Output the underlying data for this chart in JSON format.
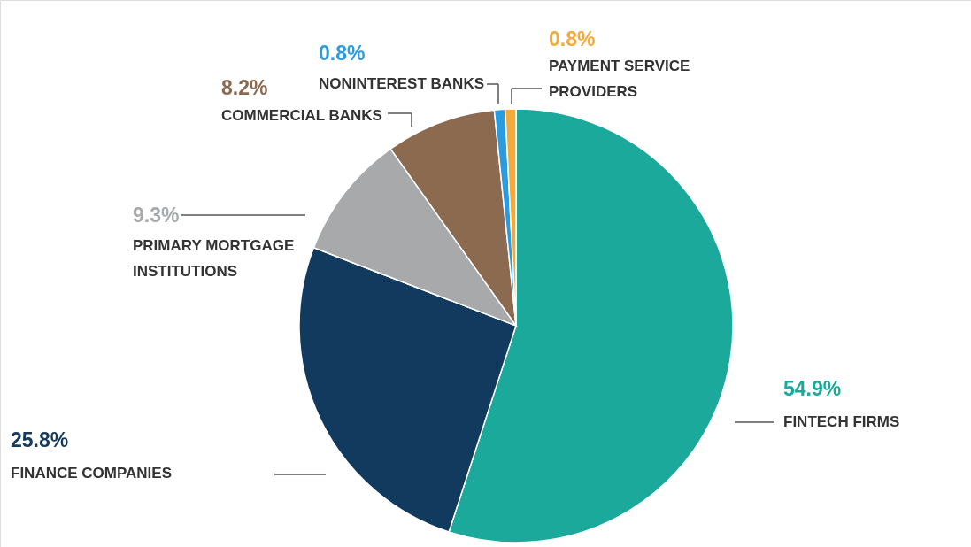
{
  "chart_data": {
    "type": "pie",
    "categories": [
      "FINTECH FIRMS",
      "FINANCE COMPANIES",
      "PRIMARY MORTGAGE INSTITUTIONS",
      "COMMERCIAL BANKS",
      "NONINTEREST BANKS",
      "PAYMENT SERVICE PROVIDERS"
    ],
    "values": [
      54.9,
      25.8,
      9.3,
      8.2,
      0.8,
      0.8
    ],
    "colors": [
      "#1aa99b",
      "#12395e",
      "#a7a9ab",
      "#8b6a4f",
      "#2b9be0",
      "#f4a93a"
    ],
    "value_labels": [
      "54.9%",
      "25.8%",
      "9.3%",
      "8.2%",
      "0.8%",
      "0.8%"
    ]
  }
}
